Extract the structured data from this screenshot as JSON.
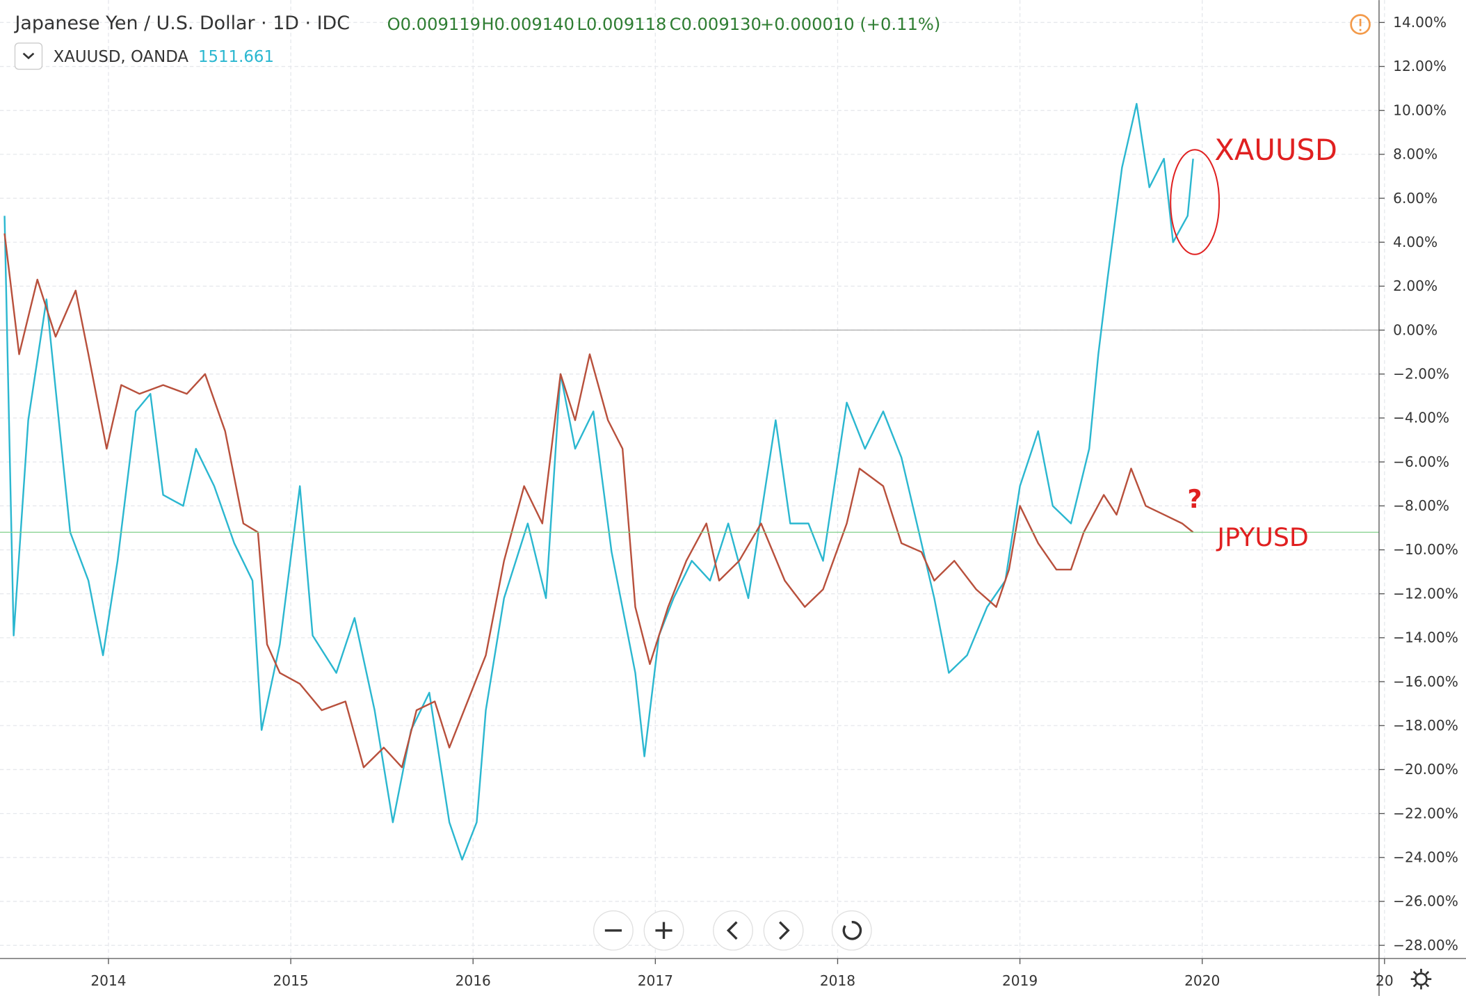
{
  "header": {
    "title": "Japanese Yen / U.S. Dollar · 1D · IDC",
    "open": "O0.009119",
    "high": "H0.009140",
    "low": "L0.009118",
    "close": "C0.009130",
    "change": "+0.000010 (+0.11%)",
    "compare_symbol": "XAUUSD, OANDA",
    "compare_value": "1511.661"
  },
  "chart_data": {
    "type": "line",
    "annotations": [
      "?"
    ],
    "xlim": [
      2013.405,
      2020.97
    ],
    "xticks": [
      2014,
      2015,
      2016,
      2017,
      2018,
      2019,
      2020,
      {
        "value": 2021,
        "label": "20"
      }
    ],
    "ylim": [
      -28.6,
      15.02
    ],
    "yticks": [
      {
        "value": 14,
        "label": "14.00%"
      },
      {
        "value": 12,
        "label": "12.00%"
      },
      {
        "value": 10,
        "label": "10.00%"
      },
      {
        "value": 8,
        "label": "8.00%"
      },
      {
        "value": 6,
        "label": "6.00%"
      },
      {
        "value": 4,
        "label": "4.00%"
      },
      {
        "value": 2,
        "label": "2.00%"
      },
      {
        "value": 0,
        "label": "0.00%"
      },
      {
        "value": -2,
        "label": "−2.00%"
      },
      {
        "value": -4,
        "label": "−4.00%"
      },
      {
        "value": -6,
        "label": "−6.00%"
      },
      {
        "value": -8,
        "label": "−8.00%"
      },
      {
        "value": -10,
        "label": "−10.00%"
      },
      {
        "value": -12,
        "label": "−12.00%"
      },
      {
        "value": -14,
        "label": "−14.00%"
      },
      {
        "value": -16,
        "label": "−16.00%"
      },
      {
        "value": -18,
        "label": "−18.00%"
      },
      {
        "value": -20,
        "label": "−20.00%"
      },
      {
        "value": -22,
        "label": "−22.00%"
      },
      {
        "value": -24,
        "label": "−24.00%"
      },
      {
        "value": -26,
        "label": "−26.00%"
      },
      {
        "value": -28,
        "label": "−28.00%"
      }
    ],
    "grid": true,
    "series": [
      {
        "name": "XAUUSD",
        "color": "#2bb7d0",
        "x": [
          2013.43,
          2013.48,
          2013.56,
          2013.66,
          2013.79,
          2013.89,
          2013.97,
          2014.05,
          2014.15,
          2014.23,
          2014.3,
          2014.41,
          2014.48,
          2014.58,
          2014.69,
          2014.79,
          2014.84,
          2014.94,
          2015.05,
          2015.12,
          2015.25,
          2015.35,
          2015.46,
          2015.56,
          2015.66,
          2015.76,
          2015.87,
          2015.94,
          2016.02,
          2016.07,
          2016.17,
          2016.3,
          2016.4,
          2016.48,
          2016.56,
          2016.66,
          2016.76,
          2016.89,
          2016.94,
          2017.02,
          2017.1,
          2017.2,
          2017.3,
          2017.4,
          2017.51,
          2017.66,
          2017.74,
          2017.84,
          2017.92,
          2018.05,
          2018.15,
          2018.25,
          2018.35,
          2018.46,
          2018.53,
          2018.61,
          2018.71,
          2018.82,
          2018.92,
          2019.0,
          2019.1,
          2019.18,
          2019.28,
          2019.38,
          2019.43,
          2019.48,
          2019.56,
          2019.64,
          2019.71,
          2019.79,
          2019.84,
          2019.92,
          2019.95
        ],
        "values": [
          5.2,
          -13.9,
          -4.1,
          1.4,
          -9.2,
          -11.4,
          -14.8,
          -10.5,
          -3.7,
          -2.9,
          -7.5,
          -8,
          -5.4,
          -7.1,
          -9.7,
          -11.4,
          -18.2,
          -14.3,
          -7.1,
          -13.9,
          -15.6,
          -13.1,
          -17.3,
          -22.4,
          -18.2,
          -16.5,
          -22.4,
          -24.1,
          -22.4,
          -17.3,
          -12.2,
          -8.8,
          -12.2,
          -2,
          -5.4,
          -3.7,
          -10.1,
          -15.6,
          -19.4,
          -13.9,
          -12.2,
          -10.5,
          -11.4,
          -8.8,
          -12.2,
          -4.1,
          -8.8,
          -8.8,
          -10.5,
          -3.3,
          -5.4,
          -3.7,
          -5.8,
          -9.7,
          -12.2,
          -15.6,
          -14.8,
          -12.6,
          -11.4,
          -7.1,
          -4.6,
          -8,
          -8.8,
          -5.4,
          -1.1,
          2.3,
          7.4,
          10.3,
          6.5,
          7.8,
          4.0,
          5.2,
          7.8
        ]
      },
      {
        "name": "JPYUSD",
        "color": "#b8503c",
        "x": [
          2013.43,
          2013.51,
          2013.61,
          2013.71,
          2013.82,
          2013.89,
          2013.99,
          2014.07,
          2014.17,
          2014.3,
          2014.43,
          2014.53,
          2014.64,
          2014.74,
          2014.82,
          2014.87,
          2014.94,
          2015.05,
          2015.17,
          2015.3,
          2015.4,
          2015.51,
          2015.61,
          2015.69,
          2015.79,
          2015.87,
          2015.97,
          2016.07,
          2016.17,
          2016.28,
          2016.38,
          2016.48,
          2016.56,
          2016.64,
          2016.74,
          2016.82,
          2016.89,
          2016.97,
          2017.07,
          2017.17,
          2017.28,
          2017.35,
          2017.46,
          2017.58,
          2017.71,
          2017.82,
          2017.92,
          2018.05,
          2018.12,
          2018.25,
          2018.35,
          2018.46,
          2018.53,
          2018.64,
          2018.76,
          2018.87,
          2018.94,
          2019.0,
          2019.1,
          2019.2,
          2019.28,
          2019.35,
          2019.46,
          2019.53,
          2019.61,
          2019.69,
          2019.79,
          2019.89,
          2019.95
        ],
        "values": [
          4.4,
          -1.1,
          2.3,
          -0.3,
          1.8,
          -1.1,
          -5.4,
          -2.5,
          -2.9,
          -2.5,
          -2.9,
          -2,
          -4.6,
          -8.8,
          -9.2,
          -14.3,
          -15.6,
          -16.1,
          -17.3,
          -16.9,
          -19.9,
          -19,
          -19.9,
          -17.3,
          -16.9,
          -19,
          -16.9,
          -14.8,
          -10.5,
          -7.1,
          -8.8,
          -2,
          -4.1,
          -1.1,
          -4.1,
          -5.4,
          -12.6,
          -15.2,
          -12.6,
          -10.5,
          -8.8,
          -11.4,
          -10.5,
          -8.8,
          -11.4,
          -12.6,
          -11.8,
          -8.8,
          -6.3,
          -7.1,
          -9.7,
          -10.1,
          -11.4,
          -10.5,
          -11.8,
          -12.6,
          -10.9,
          -8,
          -9.7,
          -10.9,
          -10.9,
          -9.2,
          -7.5,
          -8.4,
          -6.3,
          -8,
          -8.4,
          -8.8,
          -9.2
        ]
      }
    ]
  }
}
